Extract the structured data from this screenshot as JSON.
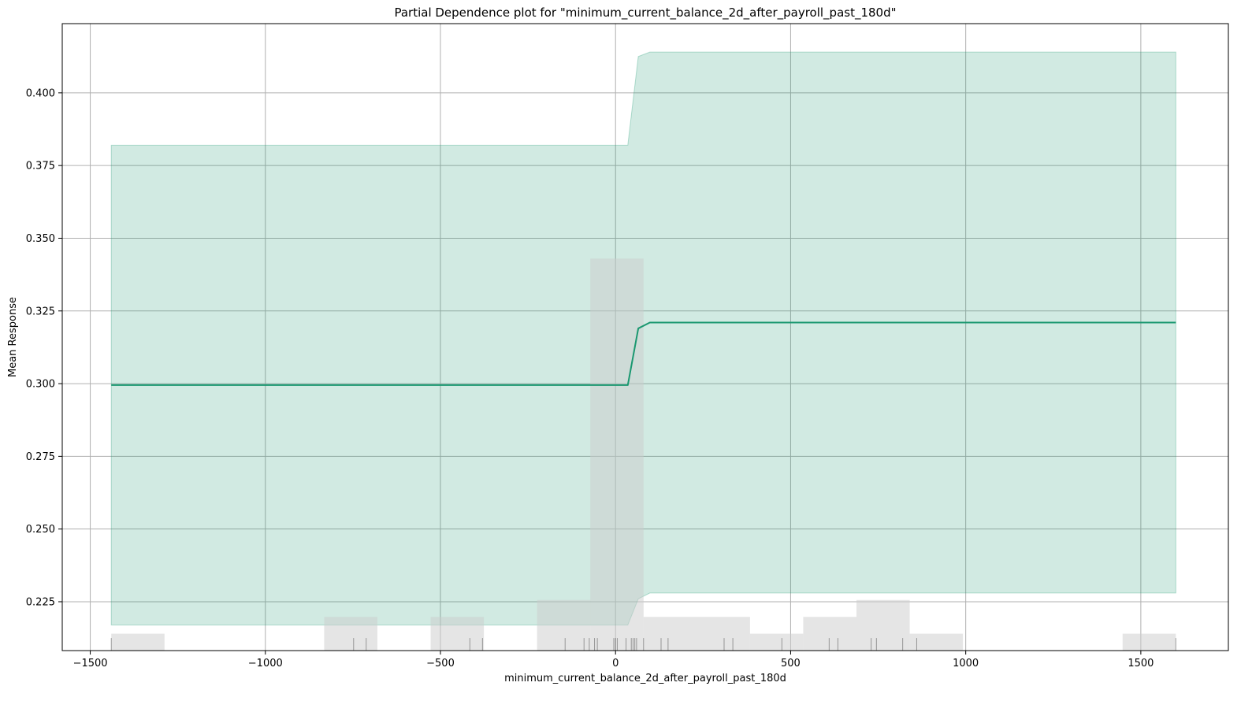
{
  "chart_data": {
    "type": "line",
    "title": "Partial Dependence plot for \"minimum_current_balance_2d_after_payroll_past_180d\"",
    "xlabel": "minimum_current_balance_2d_after_payroll_past_180d",
    "ylabel": "Mean Response",
    "xlim": [
      -1580,
      1750
    ],
    "ylim": [
      0.2082,
      0.4238
    ],
    "x_ticks": [
      -1500,
      -1000,
      -500,
      0,
      500,
      1000,
      1500
    ],
    "x_tick_labels": [
      "−1500",
      "−1000",
      "−500",
      "0",
      "500",
      "1000",
      "1500"
    ],
    "y_ticks": [
      0.225,
      0.25,
      0.275,
      0.3,
      0.325,
      0.35,
      0.375,
      0.4
    ],
    "y_tick_labels": [
      "0.225",
      "0.250",
      "0.275",
      "0.300",
      "0.325",
      "0.350",
      "0.375",
      "0.400"
    ],
    "grid": true,
    "series": [
      {
        "color": "#1a9870",
        "x": [
          -1440,
          35,
          65,
          98,
          1600
        ],
        "y": [
          0.2995,
          0.2995,
          0.319,
          0.321,
          0.321
        ]
      }
    ],
    "band": {
      "color": "#1a9870",
      "x": [
        -1440,
        35,
        65,
        98,
        1600
      ],
      "upper": [
        0.382,
        0.382,
        0.4125,
        0.414,
        0.414
      ],
      "lower": [
        0.217,
        0.217,
        0.226,
        0.228,
        0.228
      ]
    },
    "histogram": {
      "color": "#cccccc",
      "bins": [
        {
          "x0": -1440,
          "x1": -1288,
          "height": 0.0058
        },
        {
          "x0": -832,
          "x1": -680,
          "height": 0.0116
        },
        {
          "x0": -528,
          "x1": -376,
          "height": 0.0116
        },
        {
          "x0": -224,
          "x1": -72,
          "height": 0.0174
        },
        {
          "x0": -72,
          "x1": 80,
          "height": 0.1348
        },
        {
          "x0": 80,
          "x1": 384,
          "height": 0.0116
        },
        {
          "x0": 384,
          "x1": 536,
          "height": 0.0058
        },
        {
          "x0": 536,
          "x1": 688,
          "height": 0.0116
        },
        {
          "x0": 688,
          "x1": 840,
          "height": 0.0174
        },
        {
          "x0": 840,
          "x1": 992,
          "height": 0.0058
        },
        {
          "x0": 1448,
          "x1": 1600,
          "height": 0.0058
        }
      ]
    },
    "rug": [
      -1440,
      -748,
      -712,
      -416,
      -380,
      -144,
      -90,
      -75,
      -60,
      -52,
      -5,
      0,
      5,
      30,
      45,
      50,
      55,
      60,
      80,
      130,
      150,
      310,
      335,
      475,
      610,
      635,
      730,
      745,
      820,
      860,
      1600
    ]
  }
}
